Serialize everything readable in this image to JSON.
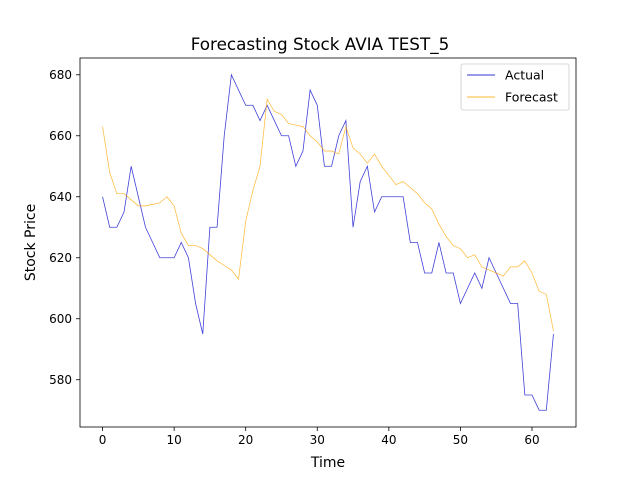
{
  "chart_data": {
    "type": "line",
    "title": "Forecasting Stock AVIA TEST_5",
    "xlabel": "Time",
    "ylabel": "Stock Price",
    "xlim": [
      -3.15,
      66.15
    ],
    "ylim": [
      564.5,
      685.5
    ],
    "x_ticks": [
      0,
      10,
      20,
      30,
      40,
      50,
      60
    ],
    "y_ticks": [
      580,
      600,
      620,
      640,
      660,
      680
    ],
    "grid": false,
    "legend_position": "top-right",
    "x": [
      0,
      1,
      2,
      3,
      4,
      5,
      6,
      7,
      8,
      9,
      10,
      11,
      12,
      13,
      14,
      15,
      16,
      17,
      18,
      19,
      20,
      21,
      22,
      23,
      24,
      25,
      26,
      27,
      28,
      29,
      30,
      31,
      32,
      33,
      34,
      35,
      36,
      37,
      38,
      39,
      40,
      41,
      42,
      43,
      44,
      45,
      46,
      47,
      48,
      49,
      50,
      51,
      52,
      53,
      54,
      55,
      56,
      57,
      58,
      59,
      60,
      61,
      62,
      63
    ],
    "series": [
      {
        "name": "Actual",
        "color": "#0000cc",
        "values": [
          640,
          630,
          630,
          635,
          650,
          640,
          630,
          625,
          620,
          620,
          620,
          625,
          620,
          605,
          595,
          630,
          630,
          660,
          680,
          675,
          670,
          670,
          665,
          670,
          665,
          660,
          660,
          650,
          655,
          675,
          670,
          650,
          650,
          660,
          665,
          630,
          645,
          650,
          635,
          640,
          640,
          640,
          640,
          625,
          625,
          615,
          615,
          625,
          615,
          615,
          605,
          610,
          615,
          610,
          620,
          615,
          610,
          605,
          605,
          575,
          575,
          570,
          570,
          595
        ]
      },
      {
        "name": "Forecast",
        "color": "#ffa500",
        "values": [
          663,
          648,
          641,
          641,
          639,
          637,
          637,
          637.5,
          638,
          640,
          637,
          628,
          624,
          624,
          623,
          621,
          619,
          617.5,
          616,
          613,
          632,
          642,
          650,
          672,
          668,
          667,
          664,
          663.5,
          663,
          660,
          658,
          655,
          655,
          654,
          663,
          656,
          654,
          651,
          654,
          650,
          647,
          644,
          645,
          643,
          641,
          638,
          636,
          631,
          627,
          624,
          623,
          620,
          621,
          617,
          616,
          615,
          614,
          617,
          617,
          619,
          615,
          609,
          608,
          596
        ]
      }
    ]
  }
}
